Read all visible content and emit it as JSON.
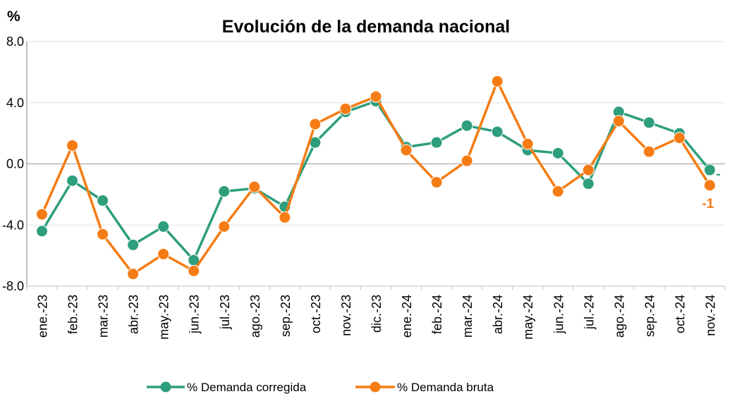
{
  "chart_data": {
    "type": "line",
    "title": "Evolución de la demanda nacional",
    "ylabel": "%",
    "ylim": [
      -8.0,
      8.0
    ],
    "yticks": [
      8.0,
      4.0,
      0.0,
      -4.0,
      -8.0
    ],
    "ytick_labels": [
      "8.0",
      "4.0",
      "0.0",
      "-4.0",
      "-8.0"
    ],
    "grid": true,
    "legend_position": "bottom",
    "categories": [
      "ene.-23",
      "feb.-23",
      "mar.-23",
      "abr.-23",
      "may.-23",
      "jun.-23",
      "jul.-23",
      "ago.-23",
      "sep.-23",
      "oct.-23",
      "nov.-23",
      "dic.-23",
      "ene.-24",
      "feb.-24",
      "mar.-24",
      "abr.-24",
      "may.-24",
      "jun.-24",
      "jul.-24",
      "ago.-24",
      "sep.-24",
      "oct.-24",
      "nov.-24"
    ],
    "series": [
      {
        "name": "% Demanda corregida",
        "color": "#2e9e7d",
        "values": [
          -4.4,
          -1.1,
          -2.4,
          -5.3,
          -4.1,
          -6.3,
          -1.8,
          -1.6,
          -2.8,
          1.4,
          3.4,
          4.1,
          1.1,
          1.4,
          2.5,
          2.1,
          0.9,
          0.7,
          -1.3,
          3.4,
          2.7,
          2.0,
          -0.4
        ],
        "end_label": "-"
      },
      {
        "name": "% Demanda bruta",
        "color": "#f57c14",
        "values": [
          -3.3,
          1.2,
          -4.6,
          -7.2,
          -5.9,
          -7.0,
          -4.1,
          -1.5,
          -3.5,
          2.6,
          3.6,
          4.4,
          0.9,
          -1.2,
          0.2,
          5.4,
          1.3,
          -1.8,
          -0.4,
          2.8,
          0.8,
          1.7,
          -1.4
        ],
        "end_label": "-1"
      }
    ]
  }
}
